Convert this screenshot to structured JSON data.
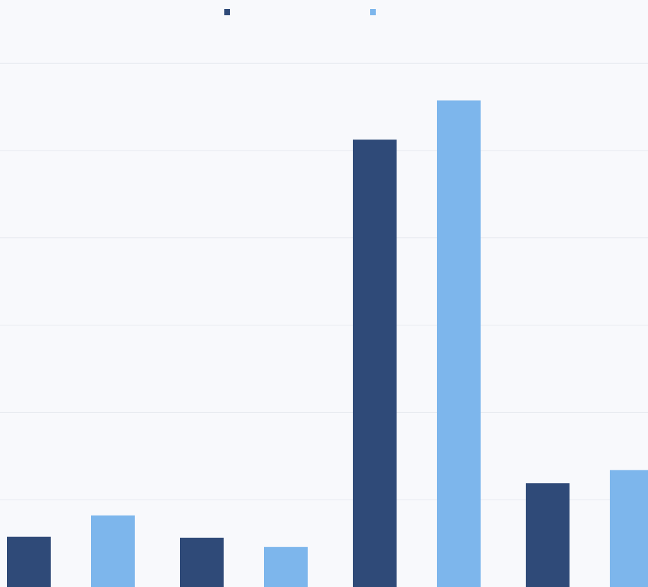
{
  "chart_data": {
    "type": "bar",
    "title": "",
    "xlabel": "",
    "ylabel": "",
    "categories": [
      "",
      "",
      "",
      ""
    ],
    "series": [
      {
        "values": [
          11.5,
          11.3,
          102.5,
          23.8
        ]
      },
      {
        "values": [
          16.4,
          9.2,
          111.5,
          26.8
        ]
      }
    ],
    "ylim": [
      0,
      134.5
    ],
    "grid": true,
    "legend": {
      "placement": "top-center"
    },
    "colors": {
      "background": "#f8f9fc",
      "series_0": "#2f4a78",
      "series_1": "#7db6ec",
      "grid": "#e6e9ef"
    }
  }
}
